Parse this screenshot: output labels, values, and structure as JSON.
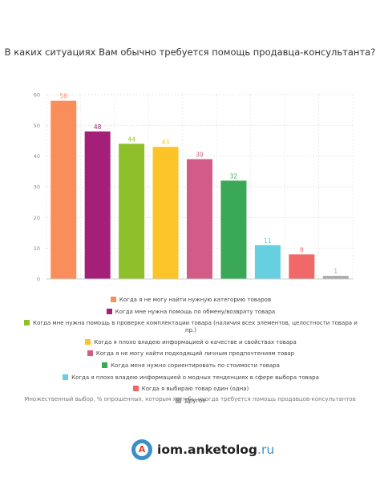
{
  "title": "В каких ситуациях Вам обычно требуется помощь продавца-консультанта?",
  "chart_data": {
    "type": "bar",
    "categories": [
      "Когда я не могу найти нужную категорию товаров",
      "Когда мне нужна помощь по обмену/возврату товара",
      "Когда мне нужна помощь в проверке комплектации товара (наличия всех элементов, целостности товара и пр.)",
      "Когда я плохо владею информацией о качестве и свойствах товара",
      "Когда я не могу найти подходящий личным предпочтениям товар",
      "Когда меня нужно сориентировать по стоимости товара",
      "Когда я плохо владею информацией о модных тенденциях в сфере выбора товара",
      "Когда я выбираю товар один (одна)",
      "Другое"
    ],
    "values": [
      58,
      48,
      44,
      43,
      39,
      32,
      11,
      8,
      1
    ],
    "colors": [
      "#f98e5a",
      "#a41f77",
      "#8fc02c",
      "#fdc42a",
      "#d35b87",
      "#3aa857",
      "#66cfe0",
      "#f06868",
      "#aaaaaa"
    ],
    "ylim": [
      0,
      60
    ],
    "yticks": [
      0,
      10,
      20,
      30,
      40,
      50,
      60
    ],
    "grid": true,
    "legend_position": "bottom"
  },
  "note": "Множественный выбор, % опрошенных, которым хотя бы иногда требуется помощь продавцов-консультантов",
  "logo": {
    "letter": "A",
    "name": "iom.anketolog",
    "tld": ".ru"
  }
}
